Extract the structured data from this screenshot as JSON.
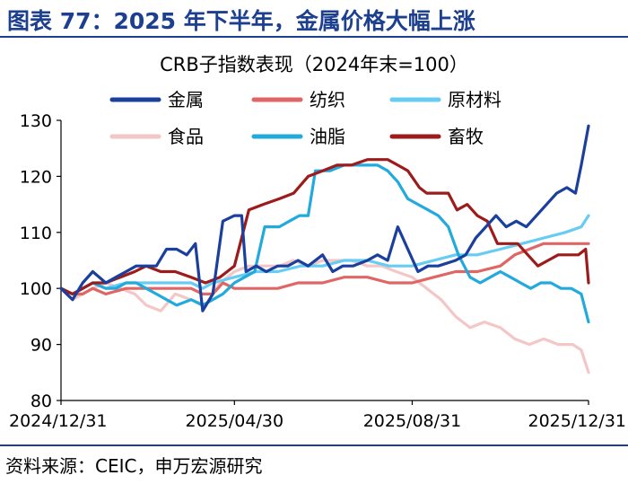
{
  "figure": {
    "title": "图表 77：2025 年下半年，金属价格大幅上涨",
    "source": "资料来源：CEIC，申万宏源研究"
  },
  "chart_data": {
    "type": "line",
    "title": "CRB子指数表现（2024年末=100）",
    "xlabel": "",
    "ylabel": "",
    "ylim": [
      80,
      130
    ],
    "yticks": [
      80,
      90,
      100,
      110,
      120,
      130
    ],
    "xlim": [
      "2024-12-31",
      "2025-12-31"
    ],
    "xticks": [
      "2024/12/31",
      "2025/04/30",
      "2025/08/31",
      "2025/12/31"
    ],
    "grid": false,
    "legend_position": "top",
    "series": [
      {
        "name": "金属",
        "color": "#1a3f9c",
        "points": [
          [
            "2024-12-31",
            100
          ],
          [
            "2025-01-08",
            98
          ],
          [
            "2025-01-15",
            101
          ],
          [
            "2025-01-22",
            103
          ],
          [
            "2025-01-31",
            101
          ],
          [
            "2025-02-07",
            102
          ],
          [
            "2025-02-14",
            103
          ],
          [
            "2025-02-21",
            104
          ],
          [
            "2025-02-28",
            104
          ],
          [
            "2025-03-07",
            104
          ],
          [
            "2025-03-14",
            107
          ],
          [
            "2025-03-21",
            107
          ],
          [
            "2025-03-28",
            106
          ],
          [
            "2025-04-03",
            108
          ],
          [
            "2025-04-08",
            96
          ],
          [
            "2025-04-15",
            99
          ],
          [
            "2025-04-22",
            112
          ],
          [
            "2025-04-30",
            113
          ],
          [
            "2025-05-05",
            113
          ],
          [
            "2025-05-08",
            103
          ],
          [
            "2025-05-15",
            104
          ],
          [
            "2025-05-22",
            103
          ],
          [
            "2025-05-30",
            104
          ],
          [
            "2025-06-06",
            104
          ],
          [
            "2025-06-13",
            105
          ],
          [
            "2025-06-20",
            104
          ],
          [
            "2025-06-30",
            106
          ],
          [
            "2025-07-07",
            103
          ],
          [
            "2025-07-14",
            104
          ],
          [
            "2025-07-21",
            104
          ],
          [
            "2025-07-31",
            105
          ],
          [
            "2025-08-07",
            106
          ],
          [
            "2025-08-14",
            105
          ],
          [
            "2025-08-21",
            111
          ],
          [
            "2025-08-28",
            107
          ],
          [
            "2025-09-04",
            103
          ],
          [
            "2025-09-11",
            104
          ],
          [
            "2025-09-18",
            104
          ],
          [
            "2025-09-30",
            105
          ],
          [
            "2025-10-07",
            106
          ],
          [
            "2025-10-14",
            109
          ],
          [
            "2025-10-21",
            111
          ],
          [
            "2025-10-28",
            113
          ],
          [
            "2025-11-04",
            111
          ],
          [
            "2025-11-11",
            112
          ],
          [
            "2025-11-18",
            111
          ],
          [
            "2025-11-25",
            113
          ],
          [
            "2025-12-02",
            115
          ],
          [
            "2025-12-09",
            117
          ],
          [
            "2025-12-16",
            118
          ],
          [
            "2025-12-22",
            117
          ],
          [
            "2025-12-26",
            122
          ],
          [
            "2025-12-31",
            129
          ]
        ]
      },
      {
        "name": "纺织",
        "color": "#e06666",
        "points": [
          [
            "2024-12-31",
            100
          ],
          [
            "2025-01-08",
            99
          ],
          [
            "2025-01-15",
            99
          ],
          [
            "2025-01-22",
            100
          ],
          [
            "2025-01-31",
            99
          ],
          [
            "2025-02-14",
            100
          ],
          [
            "2025-02-28",
            100
          ],
          [
            "2025-03-14",
            100
          ],
          [
            "2025-03-31",
            100
          ],
          [
            "2025-04-08",
            99
          ],
          [
            "2025-04-15",
            99
          ],
          [
            "2025-04-22",
            101
          ],
          [
            "2025-04-30",
            100
          ],
          [
            "2025-05-15",
            100
          ],
          [
            "2025-05-30",
            100
          ],
          [
            "2025-06-13",
            101
          ],
          [
            "2025-06-30",
            101
          ],
          [
            "2025-07-15",
            102
          ],
          [
            "2025-07-31",
            102
          ],
          [
            "2025-08-15",
            101
          ],
          [
            "2025-08-31",
            101
          ],
          [
            "2025-09-15",
            102
          ],
          [
            "2025-09-30",
            103
          ],
          [
            "2025-10-15",
            103
          ],
          [
            "2025-10-31",
            104
          ],
          [
            "2025-11-10",
            106
          ],
          [
            "2025-11-20",
            107
          ],
          [
            "2025-11-30",
            108
          ],
          [
            "2025-12-10",
            108
          ],
          [
            "2025-12-20",
            108
          ],
          [
            "2025-12-31",
            108
          ]
        ]
      },
      {
        "name": "原材料",
        "color": "#66ccf2",
        "points": [
          [
            "2024-12-31",
            100
          ],
          [
            "2025-01-08",
            99
          ],
          [
            "2025-01-15",
            100
          ],
          [
            "2025-01-22",
            101
          ],
          [
            "2025-01-31",
            100
          ],
          [
            "2025-02-14",
            101
          ],
          [
            "2025-02-28",
            101
          ],
          [
            "2025-03-14",
            101
          ],
          [
            "2025-03-31",
            101
          ],
          [
            "2025-04-08",
            100
          ],
          [
            "2025-04-15",
            101
          ],
          [
            "2025-04-30",
            102
          ],
          [
            "2025-05-15",
            103
          ],
          [
            "2025-05-30",
            103
          ],
          [
            "2025-06-15",
            104
          ],
          [
            "2025-06-30",
            104
          ],
          [
            "2025-07-15",
            105
          ],
          [
            "2025-07-31",
            105
          ],
          [
            "2025-08-15",
            104
          ],
          [
            "2025-08-31",
            104
          ],
          [
            "2025-09-15",
            105
          ],
          [
            "2025-09-30",
            106
          ],
          [
            "2025-10-15",
            106
          ],
          [
            "2025-10-31",
            107
          ],
          [
            "2025-11-15",
            108
          ],
          [
            "2025-11-30",
            109
          ],
          [
            "2025-12-15",
            110
          ],
          [
            "2025-12-26",
            111
          ],
          [
            "2025-12-31",
            113
          ]
        ]
      },
      {
        "name": "食品",
        "color": "#f4c7c7",
        "points": [
          [
            "2024-12-31",
            100
          ],
          [
            "2025-01-08",
            98
          ],
          [
            "2025-01-15",
            99
          ],
          [
            "2025-01-22",
            100
          ],
          [
            "2025-01-31",
            101
          ],
          [
            "2025-02-10",
            100
          ],
          [
            "2025-02-20",
            99
          ],
          [
            "2025-02-28",
            97
          ],
          [
            "2025-03-10",
            96
          ],
          [
            "2025-03-20",
            99
          ],
          [
            "2025-03-31",
            98
          ],
          [
            "2025-04-10",
            97
          ],
          [
            "2025-04-20",
            101
          ],
          [
            "2025-04-30",
            103
          ],
          [
            "2025-05-10",
            104
          ],
          [
            "2025-05-20",
            104
          ],
          [
            "2025-05-31",
            104
          ],
          [
            "2025-06-10",
            105
          ],
          [
            "2025-06-20",
            104
          ],
          [
            "2025-06-30",
            105
          ],
          [
            "2025-07-10",
            105
          ],
          [
            "2025-07-20",
            105
          ],
          [
            "2025-07-31",
            104
          ],
          [
            "2025-08-10",
            104
          ],
          [
            "2025-08-20",
            103
          ],
          [
            "2025-08-31",
            102
          ],
          [
            "2025-09-10",
            100
          ],
          [
            "2025-09-20",
            98
          ],
          [
            "2025-09-30",
            95
          ],
          [
            "2025-10-10",
            93
          ],
          [
            "2025-10-20",
            94
          ],
          [
            "2025-10-31",
            93
          ],
          [
            "2025-11-10",
            91
          ],
          [
            "2025-11-20",
            90
          ],
          [
            "2025-11-30",
            91
          ],
          [
            "2025-12-10",
            90
          ],
          [
            "2025-12-20",
            90
          ],
          [
            "2025-12-26",
            89
          ],
          [
            "2025-12-31",
            85
          ]
        ]
      },
      {
        "name": "油脂",
        "color": "#22aadd",
        "points": [
          [
            "2024-12-31",
            100
          ],
          [
            "2025-01-08",
            99
          ],
          [
            "2025-01-15",
            100
          ],
          [
            "2025-01-22",
            101
          ],
          [
            "2025-01-31",
            100
          ],
          [
            "2025-02-07",
            100
          ],
          [
            "2025-02-14",
            101
          ],
          [
            "2025-02-21",
            101
          ],
          [
            "2025-02-28",
            100
          ],
          [
            "2025-03-07",
            99
          ],
          [
            "2025-03-14",
            98
          ],
          [
            "2025-03-21",
            97
          ],
          [
            "2025-03-31",
            98
          ],
          [
            "2025-04-08",
            97
          ],
          [
            "2025-04-15",
            98
          ],
          [
            "2025-04-22",
            99
          ],
          [
            "2025-04-30",
            101
          ],
          [
            "2025-05-07",
            102
          ],
          [
            "2025-05-14",
            103
          ],
          [
            "2025-05-21",
            111
          ],
          [
            "2025-05-31",
            111
          ],
          [
            "2025-06-07",
            112
          ],
          [
            "2025-06-14",
            113
          ],
          [
            "2025-06-20",
            113
          ],
          [
            "2025-06-25",
            121
          ],
          [
            "2025-07-05",
            121
          ],
          [
            "2025-07-15",
            122
          ],
          [
            "2025-07-25",
            122
          ],
          [
            "2025-07-31",
            122
          ],
          [
            "2025-08-07",
            122
          ],
          [
            "2025-08-14",
            121
          ],
          [
            "2025-08-21",
            119
          ],
          [
            "2025-08-28",
            116
          ],
          [
            "2025-09-04",
            115
          ],
          [
            "2025-09-11",
            114
          ],
          [
            "2025-09-18",
            113
          ],
          [
            "2025-09-25",
            111
          ],
          [
            "2025-10-02",
            106
          ],
          [
            "2025-10-10",
            102
          ],
          [
            "2025-10-17",
            101
          ],
          [
            "2025-10-24",
            102
          ],
          [
            "2025-10-31",
            103
          ],
          [
            "2025-11-07",
            102
          ],
          [
            "2025-11-14",
            101
          ],
          [
            "2025-11-21",
            100
          ],
          [
            "2025-11-28",
            101
          ],
          [
            "2025-12-05",
            101
          ],
          [
            "2025-12-12",
            100
          ],
          [
            "2025-12-19",
            100
          ],
          [
            "2025-12-26",
            99
          ],
          [
            "2025-12-31",
            94
          ]
        ]
      },
      {
        "name": "畜牧",
        "color": "#9c1c1c",
        "points": [
          [
            "2024-12-31",
            100
          ],
          [
            "2025-01-08",
            99
          ],
          [
            "2025-01-15",
            100
          ],
          [
            "2025-01-22",
            101
          ],
          [
            "2025-01-31",
            101
          ],
          [
            "2025-02-10",
            102
          ],
          [
            "2025-02-20",
            103
          ],
          [
            "2025-02-28",
            104
          ],
          [
            "2025-03-10",
            103
          ],
          [
            "2025-03-20",
            103
          ],
          [
            "2025-03-31",
            102
          ],
          [
            "2025-04-10",
            101
          ],
          [
            "2025-04-20",
            102
          ],
          [
            "2025-04-30",
            104
          ],
          [
            "2025-05-10",
            114
          ],
          [
            "2025-05-20",
            115
          ],
          [
            "2025-05-31",
            116
          ],
          [
            "2025-06-10",
            117
          ],
          [
            "2025-06-20",
            120
          ],
          [
            "2025-06-30",
            121
          ],
          [
            "2025-07-10",
            122
          ],
          [
            "2025-07-20",
            122
          ],
          [
            "2025-07-31",
            123
          ],
          [
            "2025-08-07",
            123
          ],
          [
            "2025-08-14",
            123
          ],
          [
            "2025-08-21",
            122
          ],
          [
            "2025-08-28",
            121
          ],
          [
            "2025-09-05",
            118
          ],
          [
            "2025-09-10",
            117
          ],
          [
            "2025-09-18",
            117
          ],
          [
            "2025-09-25",
            117
          ],
          [
            "2025-10-01",
            114
          ],
          [
            "2025-10-08",
            115
          ],
          [
            "2025-10-15",
            113
          ],
          [
            "2025-10-22",
            112
          ],
          [
            "2025-10-29",
            108
          ],
          [
            "2025-11-05",
            108
          ],
          [
            "2025-11-12",
            108
          ],
          [
            "2025-11-19",
            106
          ],
          [
            "2025-11-26",
            104
          ],
          [
            "2025-12-03",
            105
          ],
          [
            "2025-12-10",
            106
          ],
          [
            "2025-12-17",
            106
          ],
          [
            "2025-12-24",
            106
          ],
          [
            "2025-12-29",
            107
          ],
          [
            "2025-12-31",
            101
          ]
        ]
      }
    ]
  }
}
